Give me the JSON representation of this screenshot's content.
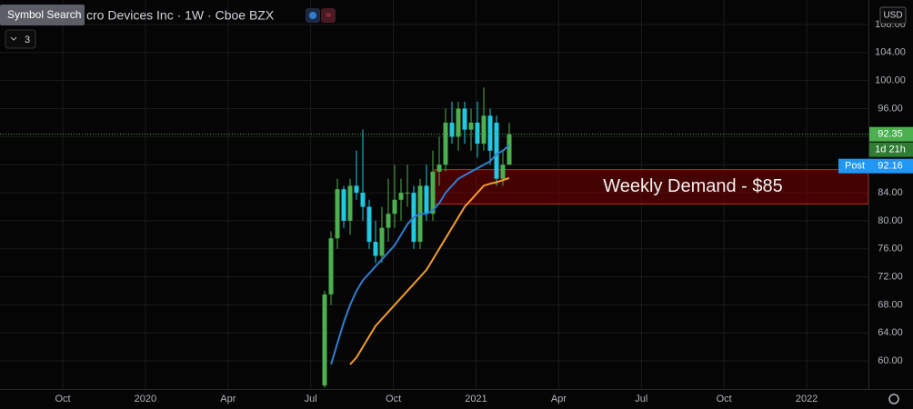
{
  "toolbar": {
    "symbol_search": "Symbol Search",
    "interval_count": "3",
    "currency": "USD"
  },
  "chart_data": {
    "type": "candlestick",
    "title": "cro Devices Inc · 1W · Cboe BZX",
    "open": [
      56.5,
      69.5,
      77.5,
      84.5,
      80,
      85,
      84,
      82,
      77,
      75,
      79,
      81,
      83,
      84,
      84,
      77,
      85,
      81,
      87,
      88,
      94,
      92,
      96,
      93,
      94,
      91,
      95,
      94,
      86,
      88
    ],
    "high": [
      70,
      78.5,
      86,
      85,
      86,
      90,
      93,
      83,
      80,
      82,
      86,
      88,
      86,
      88,
      85,
      86,
      88,
      90,
      92,
      96,
      97,
      97,
      97,
      96,
      97,
      99,
      96,
      95,
      90,
      94
    ],
    "low": [
      56.2,
      68,
      76,
      79,
      78,
      83,
      80,
      76,
      74,
      74,
      77,
      79,
      80,
      82,
      76,
      76,
      80,
      80,
      85,
      87,
      91,
      90,
      91,
      90,
      89,
      90,
      88,
      85,
      85,
      88
    ],
    "close": [
      69.5,
      77.5,
      84.5,
      80,
      85,
      84,
      82,
      77,
      75,
      79,
      81,
      83,
      84,
      84,
      77,
      85,
      81,
      87,
      88,
      94,
      92,
      96,
      93,
      94,
      91,
      95,
      90,
      86,
      88,
      92.35
    ],
    "up_color": "#4caf50",
    "down_color": "#22c7e0",
    "moving_averages": [
      {
        "color": "#2f7fd1",
        "values": [
          null,
          59.5,
          62.5,
          65.5,
          68,
          70,
          71.5,
          72.5,
          73.5,
          74.5,
          75.5,
          76.5,
          78,
          79.5,
          80.5,
          81,
          81,
          81.5,
          82.5,
          84,
          85,
          86,
          86.5,
          87,
          87.5,
          88,
          88.5,
          89.5,
          90,
          90.8
        ]
      },
      {
        "color": "#f39c2c",
        "values": [
          null,
          null,
          null,
          null,
          59.5,
          60.5,
          62,
          63.5,
          65,
          66,
          67,
          68,
          69,
          70,
          71,
          72,
          73,
          74.5,
          76,
          77.5,
          79,
          80.5,
          82,
          83,
          84,
          85,
          85.3,
          85.5,
          85.8,
          86.1
        ]
      }
    ],
    "ylim": [
      56,
      111.5
    ],
    "yticks": [
      {
        "value": 60,
        "label": "60.00"
      },
      {
        "value": 64,
        "label": "64.00"
      },
      {
        "value": 68,
        "label": "68.00"
      },
      {
        "value": 72,
        "label": "72.00"
      },
      {
        "value": 76,
        "label": "76.00"
      },
      {
        "value": 80,
        "label": "80.00"
      },
      {
        "value": 84,
        "label": "84.00"
      },
      {
        "value": 88,
        "label": "88.00"
      },
      {
        "value": 92,
        "label": "92.00"
      },
      {
        "value": 96,
        "label": "96.00"
      },
      {
        "value": 100,
        "label": "100.00"
      },
      {
        "value": 104,
        "label": "104.00"
      },
      {
        "value": 108,
        "label": "108.00"
      }
    ],
    "x_axis_labels": [
      "Oct",
      "2020",
      "Apr",
      "Jul",
      "Oct",
      "2021",
      "Apr",
      "Jul",
      "Oct",
      "2022"
    ],
    "grid": true,
    "last_price": 92.35,
    "countdown": "1d 21h",
    "post_label": "Post",
    "post_price": 92.16,
    "zone": {
      "low": 82.4,
      "high": 87.3,
      "label": "Weekly Demand - $85",
      "color": "#7a0000"
    }
  }
}
